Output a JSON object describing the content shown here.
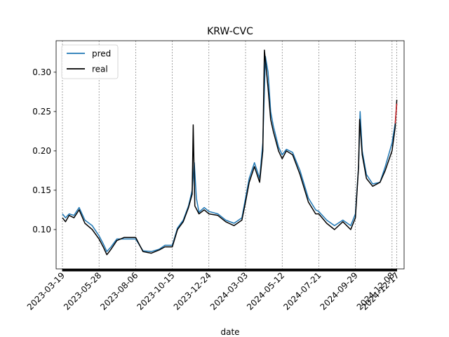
{
  "chart_data": {
    "type": "line",
    "title": "KRW-CVC",
    "xlabel": "date",
    "ylabel": "",
    "x_range": [
      "2023-03-07",
      "2024-12-31"
    ],
    "ylim": [
      0.05,
      0.34
    ],
    "y_ticks": [
      0.1,
      0.15,
      0.2,
      0.25,
      0.3
    ],
    "x_ticks": [
      "2023-03-19",
      "2023-05-28",
      "2023-08-06",
      "2023-10-15",
      "2023-12-24",
      "2024-03-03",
      "2024-05-12",
      "2024-07-21",
      "2024-09-29",
      "2024-12-08",
      "2024-12-17"
    ],
    "grid": "vertical dashed lines at x ticks",
    "legend": {
      "placement": "top-left",
      "entries": [
        "pred",
        "real"
      ]
    },
    "colors": {
      "pred": "#1f77b4",
      "real": "#000000",
      "last_point": "#d62728"
    },
    "series": [
      {
        "name": "pred",
        "x": [
          "2023-03-19",
          "2023-03-25",
          "2023-04-01",
          "2023-04-10",
          "2023-04-20",
          "2023-05-01",
          "2023-05-15",
          "2023-05-28",
          "2023-06-05",
          "2023-06-12",
          "2023-06-20",
          "2023-07-01",
          "2023-07-15",
          "2023-08-06",
          "2023-08-20",
          "2023-09-05",
          "2023-09-20",
          "2023-10-01",
          "2023-10-15",
          "2023-10-25",
          "2023-11-05",
          "2023-11-15",
          "2023-11-22",
          "2023-11-26",
          "2023-11-30",
          "2023-12-05",
          "2023-12-15",
          "2023-12-24",
          "2024-01-10",
          "2024-01-25",
          "2024-02-10",
          "2024-02-25",
          "2024-03-03",
          "2024-03-10",
          "2024-03-20",
          "2024-03-30",
          "2024-04-05",
          "2024-04-10",
          "2024-04-15",
          "2024-04-20",
          "2024-04-25",
          "2024-05-05",
          "2024-05-12",
          "2024-05-20",
          "2024-06-01",
          "2024-06-15",
          "2024-07-01",
          "2024-07-15",
          "2024-07-21",
          "2024-08-05",
          "2024-08-20",
          "2024-09-05",
          "2024-09-20",
          "2024-09-29",
          "2024-10-05",
          "2024-10-08",
          "2024-10-12",
          "2024-10-20",
          "2024-11-01",
          "2024-11-15",
          "2024-11-25",
          "2024-12-08",
          "2024-12-14",
          "2024-12-17"
        ],
        "y": [
          0.12,
          0.115,
          0.12,
          0.118,
          0.128,
          0.112,
          0.105,
          0.092,
          0.082,
          0.072,
          0.078,
          0.088,
          0.088,
          0.088,
          0.073,
          0.072,
          0.075,
          0.08,
          0.08,
          0.102,
          0.112,
          0.13,
          0.15,
          0.185,
          0.14,
          0.122,
          0.128,
          0.123,
          0.12,
          0.112,
          0.108,
          0.115,
          0.14,
          0.165,
          0.185,
          0.165,
          0.21,
          0.32,
          0.3,
          0.25,
          0.232,
          0.205,
          0.195,
          0.202,
          0.198,
          0.175,
          0.14,
          0.125,
          0.123,
          0.112,
          0.105,
          0.112,
          0.105,
          0.12,
          0.18,
          0.25,
          0.2,
          0.17,
          0.158,
          0.16,
          0.18,
          0.21,
          0.235,
          0.26
        ]
      },
      {
        "name": "real",
        "x": [
          "2023-03-19",
          "2023-03-25",
          "2023-04-01",
          "2023-04-10",
          "2023-04-20",
          "2023-05-01",
          "2023-05-15",
          "2023-05-28",
          "2023-06-05",
          "2023-06-12",
          "2023-06-20",
          "2023-07-01",
          "2023-07-15",
          "2023-08-06",
          "2023-08-20",
          "2023-09-05",
          "2023-09-20",
          "2023-10-01",
          "2023-10-15",
          "2023-10-25",
          "2023-11-05",
          "2023-11-15",
          "2023-11-22",
          "2023-11-24",
          "2023-11-27",
          "2023-12-05",
          "2023-12-15",
          "2023-12-24",
          "2024-01-10",
          "2024-01-25",
          "2024-02-10",
          "2024-02-25",
          "2024-03-03",
          "2024-03-10",
          "2024-03-20",
          "2024-03-30",
          "2024-04-05",
          "2024-04-08",
          "2024-04-15",
          "2024-04-20",
          "2024-04-25",
          "2024-05-05",
          "2024-05-12",
          "2024-05-20",
          "2024-06-01",
          "2024-06-15",
          "2024-07-01",
          "2024-07-15",
          "2024-07-21",
          "2024-08-05",
          "2024-08-20",
          "2024-09-05",
          "2024-09-20",
          "2024-09-29",
          "2024-10-05",
          "2024-10-07",
          "2024-10-12",
          "2024-10-20",
          "2024-11-01",
          "2024-11-15",
          "2024-11-25",
          "2024-12-08",
          "2024-12-14",
          "2024-12-17"
        ],
        "y": [
          0.115,
          0.11,
          0.118,
          0.115,
          0.125,
          0.108,
          0.1,
          0.088,
          0.078,
          0.068,
          0.075,
          0.086,
          0.09,
          0.09,
          0.072,
          0.07,
          0.074,
          0.078,
          0.078,
          0.1,
          0.11,
          0.128,
          0.145,
          0.233,
          0.13,
          0.12,
          0.125,
          0.12,
          0.118,
          0.11,
          0.105,
          0.112,
          0.135,
          0.16,
          0.18,
          0.16,
          0.2,
          0.328,
          0.28,
          0.24,
          0.225,
          0.2,
          0.19,
          0.2,
          0.195,
          0.17,
          0.135,
          0.12,
          0.12,
          0.108,
          0.1,
          0.11,
          0.1,
          0.115,
          0.18,
          0.24,
          0.195,
          0.165,
          0.155,
          0.16,
          0.175,
          0.2,
          0.23,
          0.265
        ]
      }
    ]
  }
}
